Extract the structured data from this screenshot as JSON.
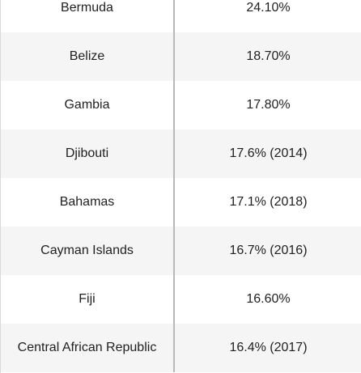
{
  "table": {
    "rows": [
      {
        "country": "Bermuda",
        "value": "24.10%"
      },
      {
        "country": "Belize",
        "value": "18.70%"
      },
      {
        "country": "Gambia",
        "value": "17.80%"
      },
      {
        "country": "Djibouti",
        "value": "17.6% (2014)"
      },
      {
        "country": "Bahamas",
        "value": "17.1% (2018)"
      },
      {
        "country": "Cayman Islands",
        "value": "16.7% (2016)"
      },
      {
        "country": "Fiji",
        "value": "16.60%"
      },
      {
        "country": "Central African Republic",
        "value": "16.4% (2017)"
      }
    ]
  }
}
